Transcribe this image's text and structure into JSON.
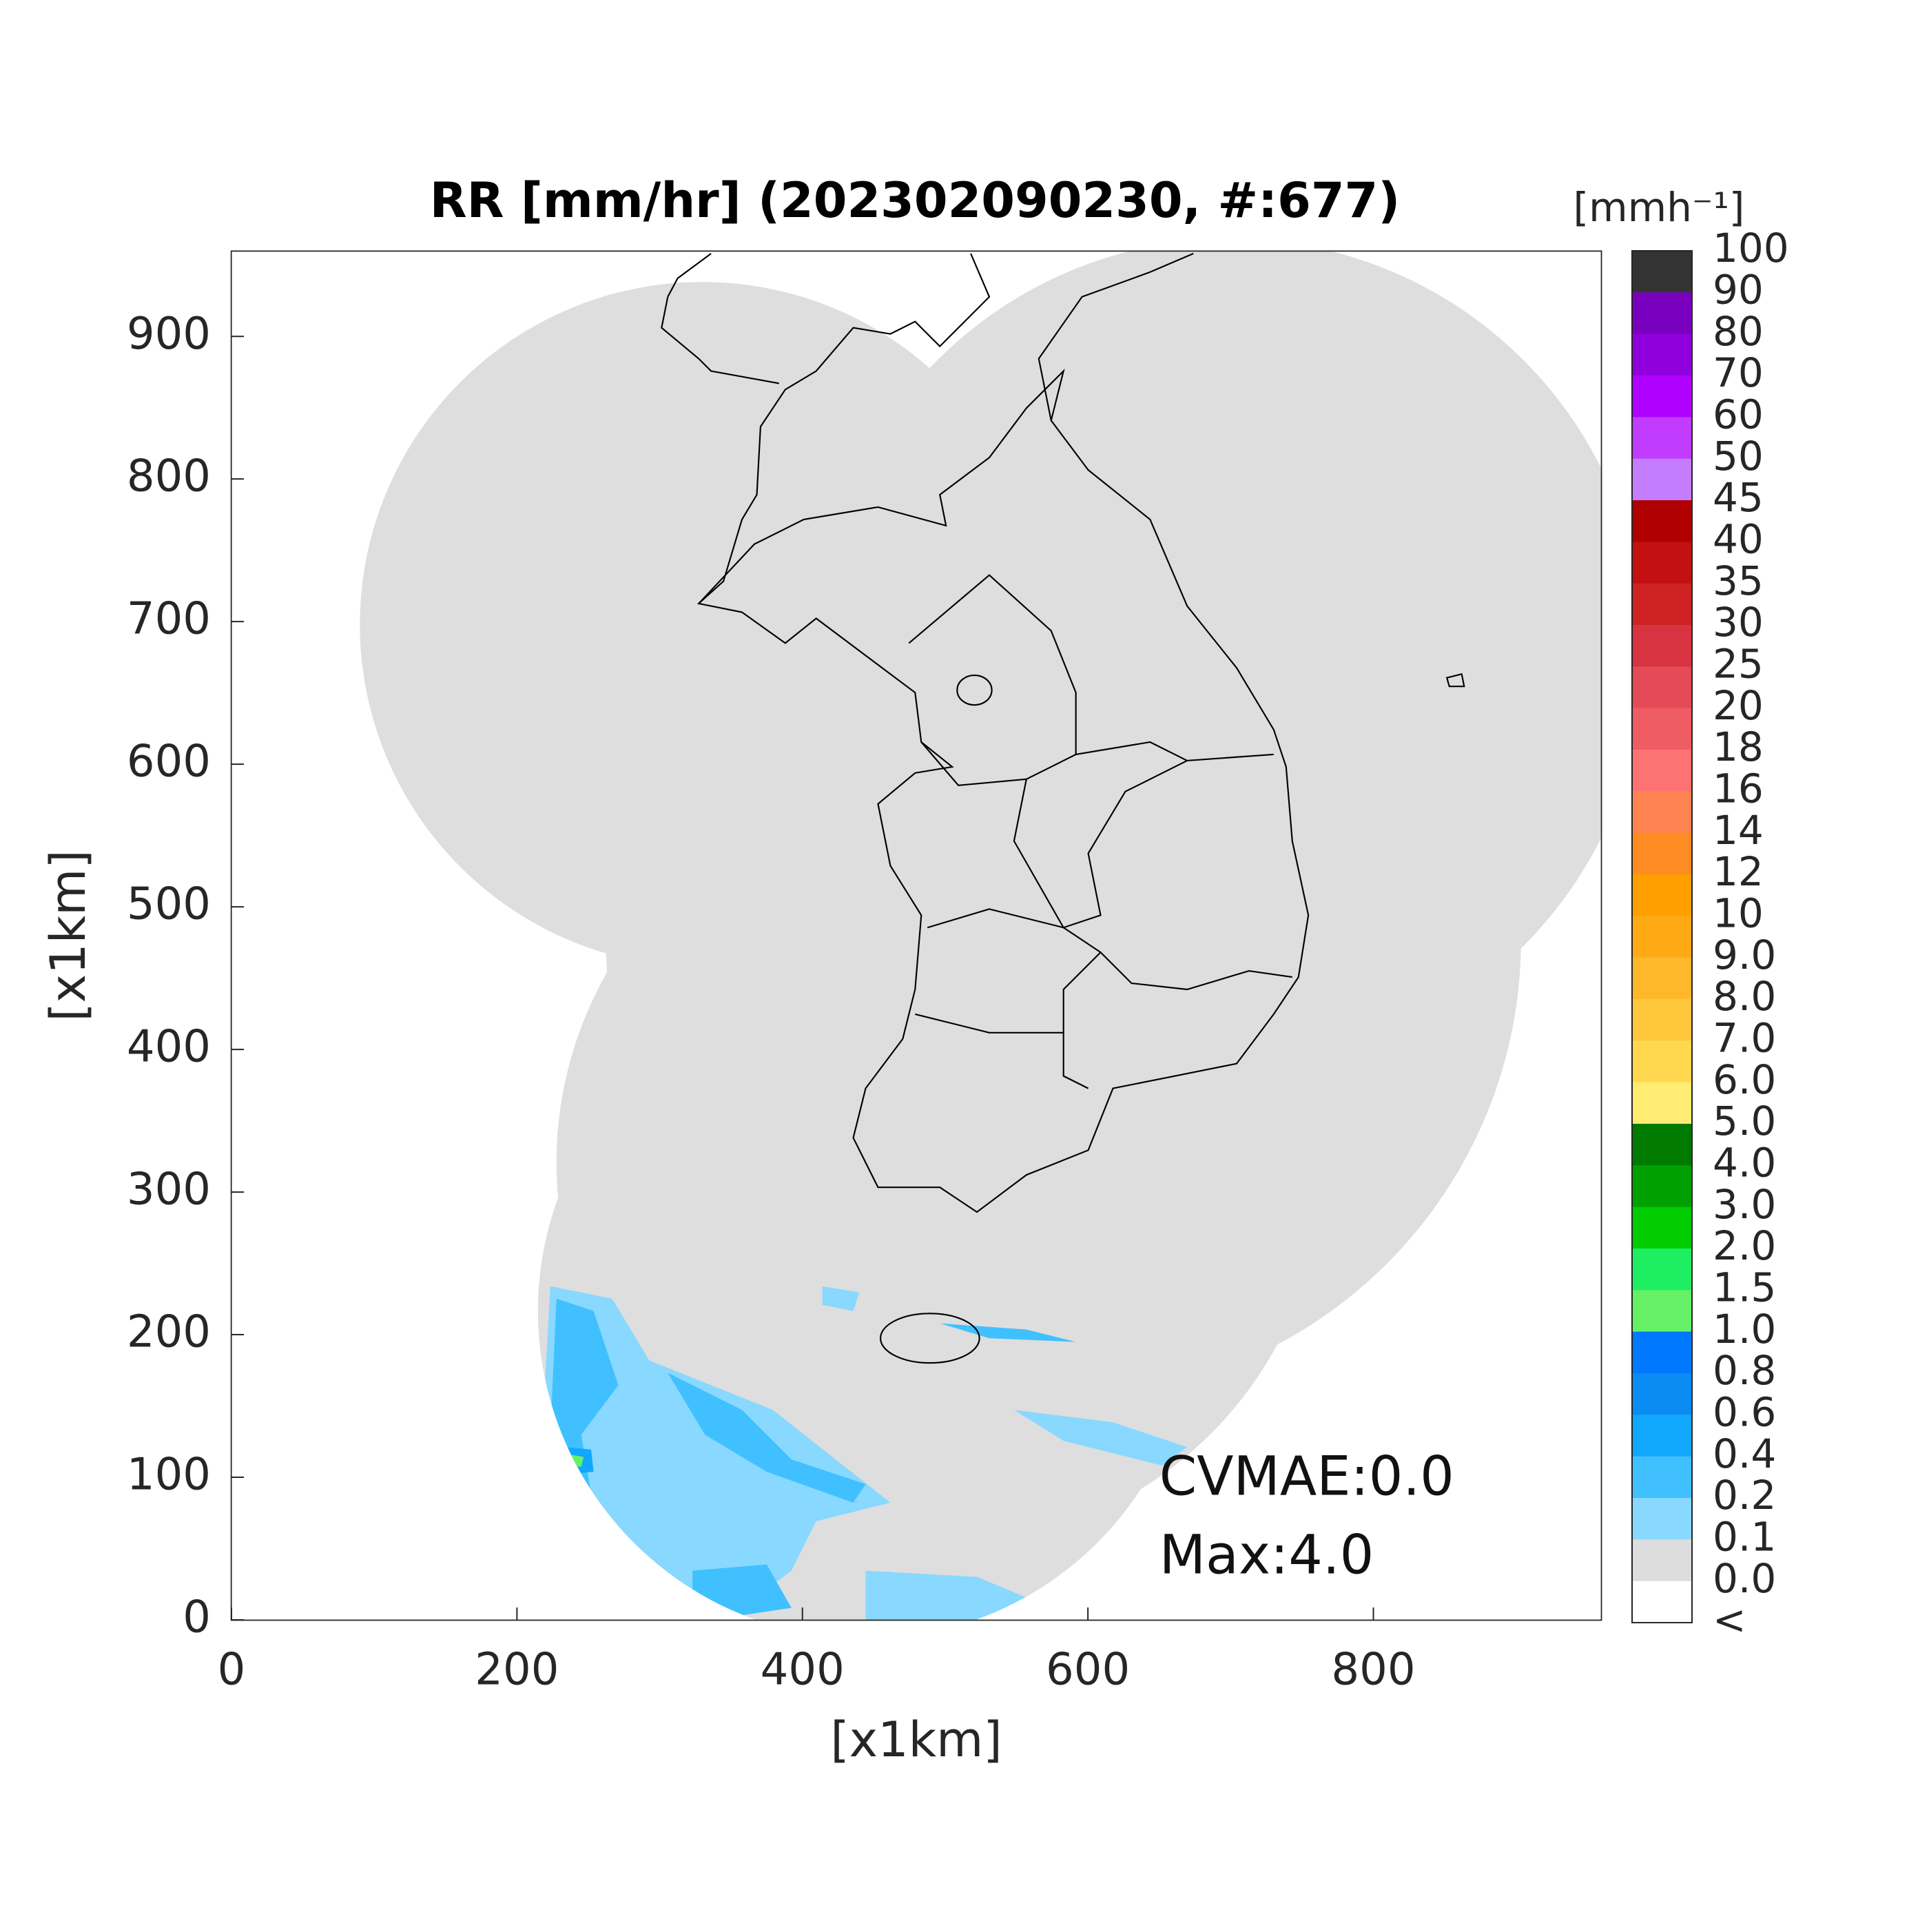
{
  "chart_data": {
    "type": "map",
    "title": "RR [mm/hr] (202302090230, #:677)",
    "x_label": "[x1km]",
    "y_label": "[x1km]",
    "xlim": [
      0,
      960
    ],
    "ylim": [
      0,
      960
    ],
    "xticks": [
      0,
      200,
      400,
      600,
      800
    ],
    "yticks": [
      0,
      100,
      200,
      300,
      400,
      500,
      600,
      700,
      800,
      900
    ],
    "annotations": [
      "CVMAE:0.0",
      "Max:4.0"
    ],
    "colorbar": {
      "title": "[mmh⁻¹]",
      "labels": [
        "100",
        "90",
        "80",
        "70",
        "60",
        "50",
        "45",
        "40",
        "35",
        "30",
        "25",
        "20",
        "18",
        "16",
        "14",
        "12",
        "10",
        "9.0",
        "8.0",
        "7.0",
        "6.0",
        "5.0",
        "4.0",
        "3.0",
        "2.0",
        "1.5",
        "1.0",
        "0.8",
        "0.6",
        "0.4",
        "0.2",
        "0.1",
        "0.0",
        "<"
      ],
      "colors": [
        "#333333",
        "#7a00bf",
        "#8f00dd",
        "#b000ff",
        "#c23cff",
        "#c47dff",
        "#b00000",
        "#c31010",
        "#cf2222",
        "#d83340",
        "#e54a58",
        "#f05c64",
        "#fd7272",
        "#ff8452",
        "#ff8c22",
        "#ffa000",
        "#ffaa14",
        "#ffb82a",
        "#ffc73c",
        "#ffd84f",
        "#ffec72",
        "#007a00",
        "#00a000",
        "#00cc00",
        "#1eee62",
        "#66f066",
        "#0078ff",
        "#0a8cf2",
        "#10a8ff",
        "#40c0ff",
        "#88d8ff",
        "#dddddd",
        "#ffffff"
      ]
    }
  }
}
